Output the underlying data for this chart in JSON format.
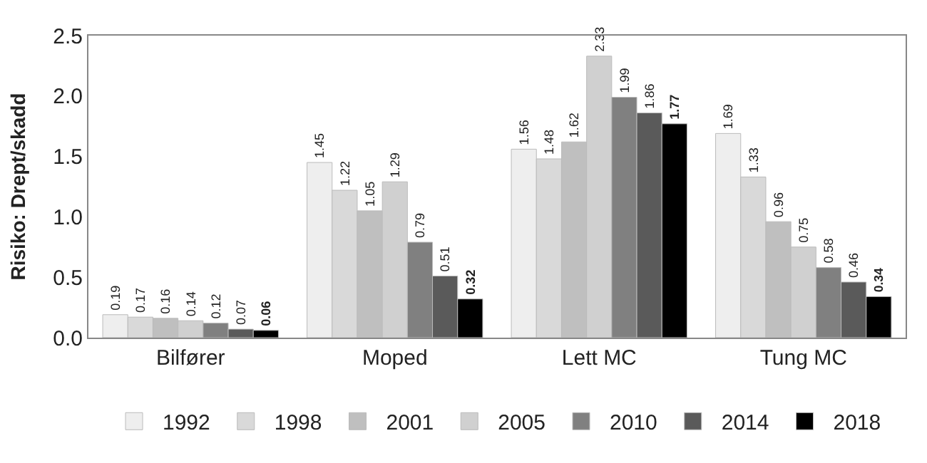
{
  "chart_data": {
    "type": "bar",
    "ylabel": "Risiko: Drept/skadd",
    "categories": [
      "Bilfører",
      "Moped",
      "Lett MC",
      "Tung MC"
    ],
    "series": [
      {
        "name": "1992",
        "color": "#eeeeee",
        "values": [
          0.19,
          1.45,
          1.56,
          1.69
        ]
      },
      {
        "name": "1998",
        "color": "#d9d9d9",
        "values": [
          0.17,
          1.22,
          1.48,
          1.33
        ]
      },
      {
        "name": "2001",
        "color": "#bfbfbf",
        "values": [
          0.16,
          1.05,
          1.62,
          0.96
        ]
      },
      {
        "name": "2005",
        "color": "#d0d0d0",
        "values": [
          0.14,
          1.29,
          2.33,
          0.75
        ]
      },
      {
        "name": "2010",
        "color": "#808080",
        "values": [
          0.12,
          0.79,
          1.99,
          0.58
        ]
      },
      {
        "name": "2014",
        "color": "#5a5a5a",
        "values": [
          0.07,
          0.51,
          1.86,
          0.46
        ]
      },
      {
        "name": "2018",
        "color": "#000000",
        "values": [
          0.06,
          0.32,
          1.77,
          0.34
        ]
      }
    ],
    "ylim": [
      0,
      2.5
    ],
    "yticks": [
      {
        "value": 0,
        "label": "0.0"
      },
      {
        "value": 0.5,
        "label": "0.5"
      },
      {
        "value": 1,
        "label": "1.0"
      },
      {
        "value": 1.5,
        "label": "1.5"
      },
      {
        "value": 2,
        "label": "2.0"
      },
      {
        "value": 2.5,
        "label": "2.5"
      }
    ],
    "data_labels": true,
    "legend": "bottom"
  }
}
